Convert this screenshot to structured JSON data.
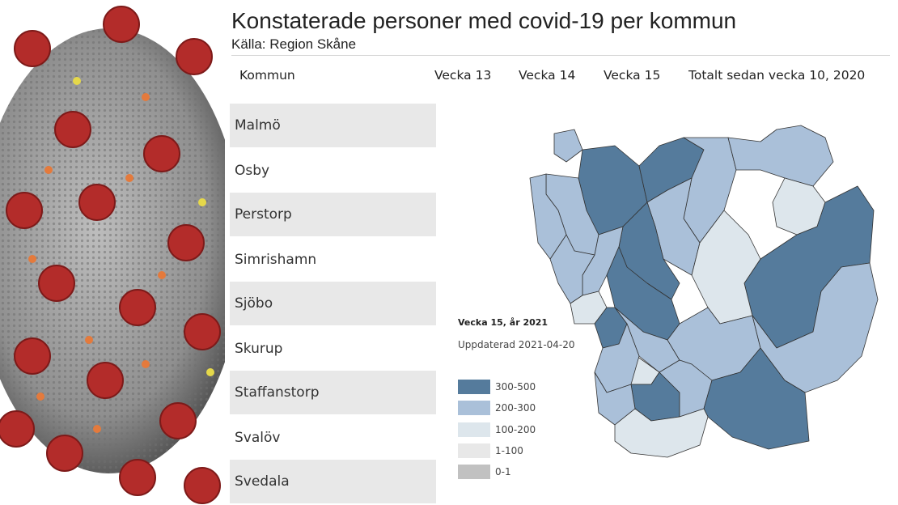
{
  "header": {
    "title": "Konstaterade personer med covid-19 per kommun",
    "source": "Källa: Region Skåne"
  },
  "table": {
    "columns": [
      "Kommun",
      "Vecka 13",
      "Vecka 14",
      "Vecka 15",
      "Totalt sedan vecka 10, 2020"
    ],
    "rows": [
      "Malmö",
      "Osby",
      "Perstorp",
      "Simrishamn",
      "Sjöbo",
      "Skurup",
      "Staffanstorp",
      "Svalöv",
      "Svedala"
    ]
  },
  "legend": {
    "title": "Vecka 15, år 2021",
    "updated": "Uppdaterad 2021-04-20",
    "classes": [
      {
        "label": "300-500",
        "color": "#557b9c"
      },
      {
        "label": "200-300",
        "color": "#aac0d9"
      },
      {
        "label": "100-200",
        "color": "#dde6ec"
      },
      {
        "label": "1-100",
        "color": "#e8e8e8"
      },
      {
        "label": "0-1",
        "color": "#c1c1c1"
      }
    ]
  },
  "colors": {
    "row_shade": "#e8e8e8",
    "map_border": "#333333"
  }
}
